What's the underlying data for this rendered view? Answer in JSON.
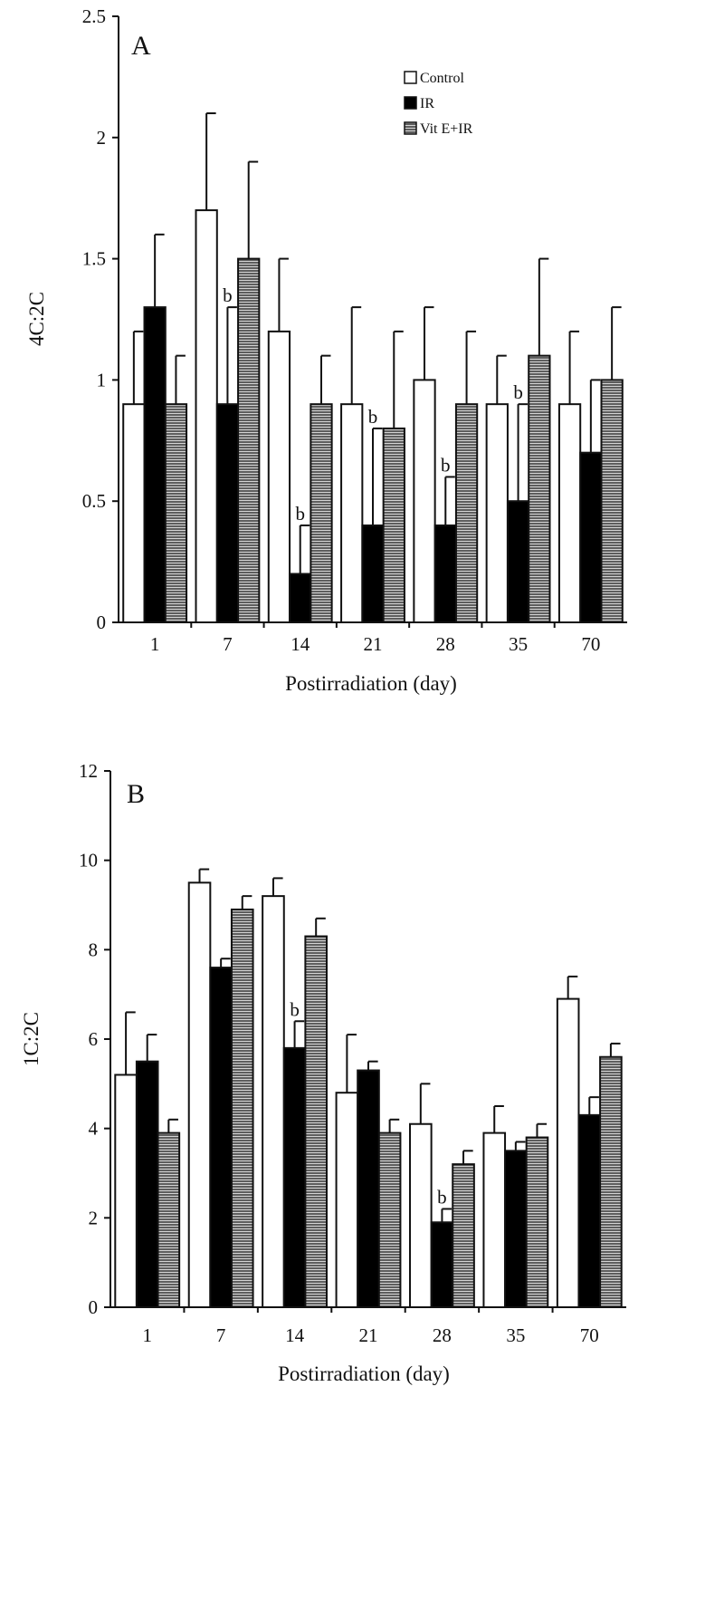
{
  "colors": {
    "axis": "#111111",
    "control_fill": "#ffffff",
    "ir_fill": "#000000",
    "vite_fill": "#6b6b6b",
    "vite_stripe": "#d8d8d8"
  },
  "chart_data": [
    {
      "type": "bar",
      "panel_label": "A",
      "xlabel": "Postirradiation (day)",
      "ylabel": "4C:2C",
      "ylim": [
        0,
        2.5
      ],
      "yticks": [
        "0",
        "0.5",
        "1",
        "1.5",
        "2",
        "2.5"
      ],
      "categories": [
        "1",
        "7",
        "14",
        "21",
        "28",
        "35",
        "70"
      ],
      "legend": {
        "placement": "top-right"
      },
      "series": [
        {
          "name": "Control",
          "values": [
            0.9,
            1.7,
            1.2,
            0.9,
            1.0,
            0.9,
            0.9
          ],
          "errors": [
            0.3,
            0.4,
            0.3,
            0.4,
            0.3,
            0.2,
            0.3
          ]
        },
        {
          "name": "IR",
          "values": [
            1.3,
            0.9,
            0.2,
            0.4,
            0.4,
            0.5,
            0.7
          ],
          "errors": [
            0.3,
            0.4,
            0.2,
            0.4,
            0.2,
            0.4,
            0.3
          ]
        },
        {
          "name": "Vit E+IR",
          "values": [
            0.9,
            1.5,
            0.9,
            0.8,
            0.9,
            1.1,
            1.0
          ],
          "errors": [
            0.2,
            0.4,
            0.2,
            0.4,
            0.3,
            0.4,
            0.3
          ]
        }
      ],
      "annotations": [
        {
          "text": "b",
          "series": 1,
          "category": 1
        },
        {
          "text": "b",
          "series": 1,
          "category": 2
        },
        {
          "text": "b",
          "series": 1,
          "category": 3
        },
        {
          "text": "b",
          "series": 1,
          "category": 4
        },
        {
          "text": "b",
          "series": 1,
          "category": 5
        }
      ]
    },
    {
      "type": "bar",
      "panel_label": "B",
      "xlabel": "Postirradiation (day)",
      "ylabel": "1C:2C",
      "ylim": [
        0,
        12
      ],
      "yticks": [
        "0",
        "2",
        "4",
        "6",
        "8",
        "10",
        "12"
      ],
      "categories": [
        "1",
        "7",
        "14",
        "21",
        "28",
        "35",
        "70"
      ],
      "series": [
        {
          "name": "Control",
          "values": [
            5.2,
            9.5,
            9.2,
            4.8,
            4.1,
            3.9,
            6.9
          ],
          "errors": [
            1.4,
            0.3,
            0.4,
            1.3,
            0.9,
            0.6,
            0.5
          ]
        },
        {
          "name": "IR",
          "values": [
            5.5,
            7.6,
            5.8,
            5.3,
            1.9,
            3.5,
            4.3
          ],
          "errors": [
            0.6,
            0.2,
            0.6,
            0.2,
            0.3,
            0.2,
            0.4
          ]
        },
        {
          "name": "Vit E+IR",
          "values": [
            3.9,
            8.9,
            8.3,
            3.9,
            3.2,
            3.8,
            5.6
          ],
          "errors": [
            0.3,
            0.3,
            0.4,
            0.3,
            0.3,
            0.3,
            0.3
          ]
        }
      ],
      "annotations": [
        {
          "text": "b",
          "series": 1,
          "category": 2
        },
        {
          "text": "b",
          "series": 1,
          "category": 4
        }
      ]
    }
  ]
}
